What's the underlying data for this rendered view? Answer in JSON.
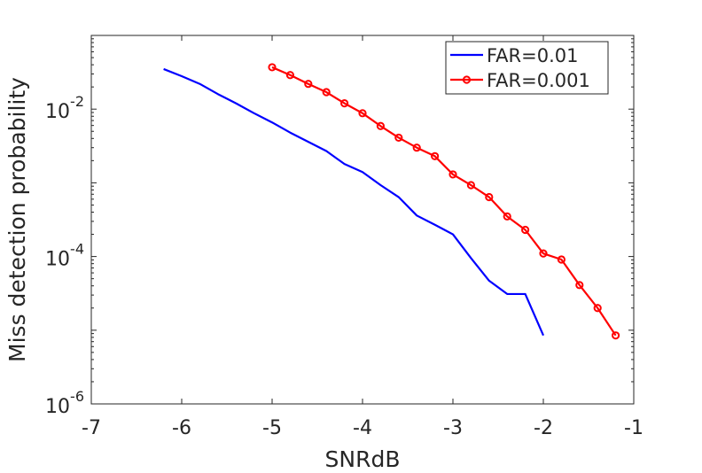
{
  "chart_data": {
    "type": "line",
    "xlabel": "SNRdB",
    "ylabel": "Miss detection probability",
    "xlim": [
      -7,
      -1
    ],
    "ylim": [
      1e-06,
      0.1
    ],
    "yscale": "log",
    "grid": false,
    "legend_position": "top-right",
    "x_ticks": [
      -7,
      -6,
      -5,
      -4,
      -3,
      -2,
      -1
    ],
    "x_tick_labels": [
      "-7",
      "-6",
      "-5",
      "-4",
      "-3",
      "-2",
      "-1"
    ],
    "y_ticks": [
      1e-06,
      0.0001,
      0.01
    ],
    "y_tick_labels": [
      {
        "base": "10",
        "exp": "-6"
      },
      {
        "base": "10",
        "exp": "-4"
      },
      {
        "base": "10",
        "exp": "-2"
      }
    ],
    "series": [
      {
        "name": "FAR=0.01",
        "color": "#0000ff",
        "marker": "none",
        "x": [
          -6.2,
          -6.0,
          -5.8,
          -5.6,
          -5.4,
          -5.2,
          -5.0,
          -4.8,
          -4.6,
          -4.4,
          -4.2,
          -4.0,
          -3.8,
          -3.6,
          -3.4,
          -3.2,
          -3.0,
          -2.8,
          -2.6,
          -2.4,
          -2.2,
          -2.0
        ],
        "y": [
          0.035,
          0.028,
          0.022,
          0.016,
          0.012,
          0.0088,
          0.0066,
          0.0048,
          0.0036,
          0.0027,
          0.0018,
          0.0014,
          0.00093,
          0.00064,
          0.00036,
          0.00027,
          0.0002,
          9.5e-05,
          4.7e-05,
          3.1e-05,
          3.1e-05,
          8.5e-06
        ]
      },
      {
        "name": "FAR=0.001",
        "color": "#ff0000",
        "marker": "circle",
        "x": [
          -5.0,
          -4.8,
          -4.6,
          -4.4,
          -4.2,
          -4.0,
          -3.8,
          -3.6,
          -3.4,
          -3.2,
          -3.0,
          -2.8,
          -2.6,
          -2.4,
          -2.2,
          -2.0,
          -1.8,
          -1.6,
          -1.4,
          -1.2
        ],
        "y": [
          0.037,
          0.029,
          0.022,
          0.017,
          0.012,
          0.0088,
          0.0059,
          0.0041,
          0.003,
          0.0023,
          0.0013,
          0.00093,
          0.00064,
          0.00035,
          0.00023,
          0.00011,
          9.1e-05,
          4.1e-05,
          2e-05,
          8.5e-06
        ]
      }
    ]
  }
}
